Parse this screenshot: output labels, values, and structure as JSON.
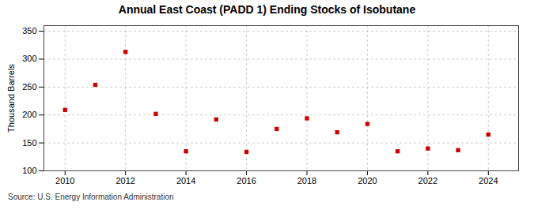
{
  "chart_data": {
    "type": "scatter",
    "title": "Annual East Coast (PADD 1) Ending Stocks of Isobutane",
    "ylabel": "Thousand Barrels",
    "source": "Source: U.S. Energy Information Administration",
    "x": [
      2010,
      2011,
      2012,
      2013,
      2014,
      2015,
      2016,
      2017,
      2018,
      2019,
      2020,
      2021,
      2022,
      2023,
      2024
    ],
    "values": [
      209,
      254,
      313,
      202,
      135,
      192,
      134,
      175,
      194,
      169,
      184,
      135,
      140,
      137,
      165
    ],
    "color": "#cc0000",
    "marker": "square",
    "xlim": [
      2009.3,
      2025.0
    ],
    "xticks": [
      2010,
      2012,
      2014,
      2016,
      2018,
      2020,
      2022,
      2024
    ],
    "ylim": [
      100,
      360
    ],
    "yticks": [
      100,
      150,
      200,
      250,
      300,
      350
    ],
    "grid": true
  }
}
